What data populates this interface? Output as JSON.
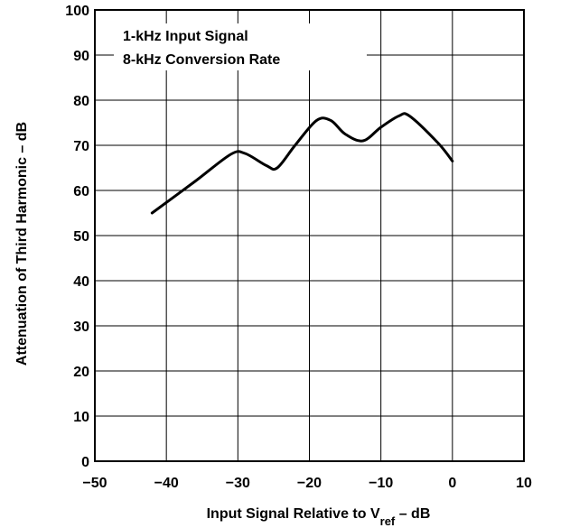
{
  "chart_data": {
    "type": "line",
    "title": "",
    "xlabel_main": "Input Signal Relative to V",
    "xlabel_sub": "ref",
    "xlabel_tail": " – dB",
    "ylabel": "Attenuation of Third Harmonic – dB",
    "xlim": [
      -50,
      10
    ],
    "ylim": [
      0,
      100
    ],
    "grid": true,
    "x_ticks": [
      -50,
      -40,
      -30,
      -20,
      -10,
      0,
      10
    ],
    "x_tick_labels": [
      "−50",
      "−40",
      "−30",
      "−20",
      "−10",
      "0",
      "10"
    ],
    "y_ticks": [
      0,
      10,
      20,
      30,
      40,
      50,
      60,
      70,
      80,
      90,
      100
    ],
    "y_tick_labels": [
      "0",
      "10",
      "20",
      "30",
      "40",
      "50",
      "60",
      "70",
      "80",
      "90",
      "100"
    ],
    "annotations": [
      "1-kHz Input Signal",
      "8-kHz Conversion Rate"
    ],
    "series": [
      {
        "x": [
          -42,
          -36,
          -31,
          -29,
          -26,
          -24.5,
          -22,
          -19,
          -17,
          -15,
          -12.5,
          -10,
          -7.5,
          -6,
          -2,
          0
        ],
        "y": [
          55,
          62,
          68,
          68.2,
          65.5,
          65,
          70,
          75.5,
          75.5,
          72.5,
          71,
          74,
          76.5,
          76.5,
          70.5,
          66.5
        ]
      }
    ]
  }
}
